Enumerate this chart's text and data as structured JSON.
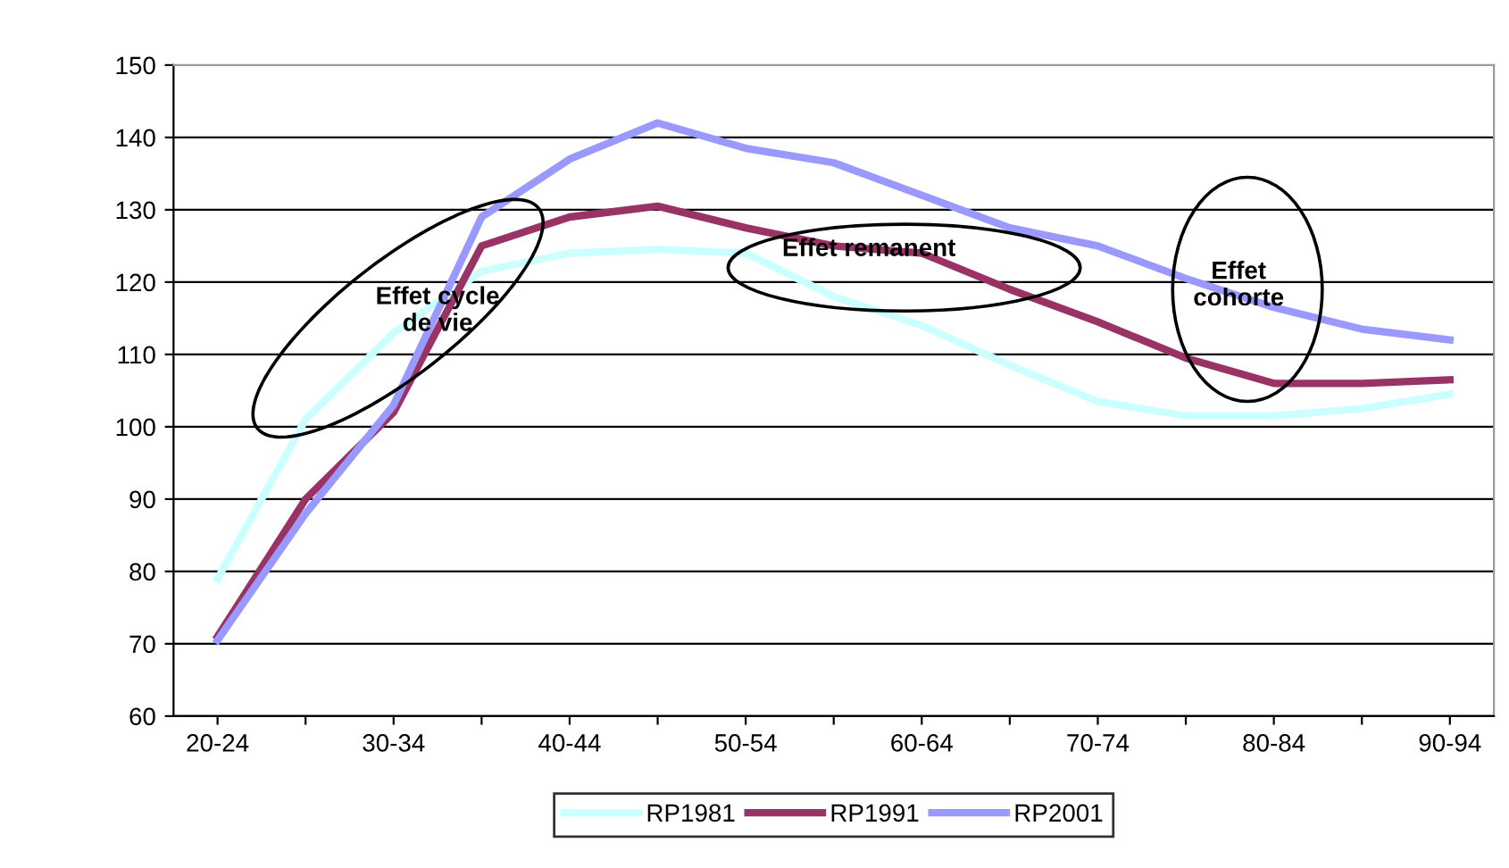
{
  "chart_data": {
    "type": "line",
    "categories": [
      "20-24",
      null,
      "30-34",
      null,
      "40-44",
      null,
      "50-54",
      null,
      "60-64",
      null,
      "70-74",
      null,
      "80-84",
      null,
      "90-94"
    ],
    "series": [
      {
        "name": "RP1981",
        "color": "#ccffff",
        "values": [
          79,
          101,
          113,
          121.5,
          124,
          124.5,
          124,
          118,
          114,
          108.5,
          103.5,
          101.5,
          101.5,
          102.5,
          104.5
        ]
      },
      {
        "name": "RP1991",
        "color": "#993366",
        "values": [
          71,
          90,
          102,
          125,
          129,
          130.5,
          127.5,
          125,
          124,
          119,
          114.5,
          109.5,
          106,
          106,
          106.5
        ]
      },
      {
        "name": "RP2001",
        "color": "#9999ff",
        "values": [
          70.5,
          88,
          103,
          129,
          137,
          142,
          138.5,
          136.5,
          132,
          127.5,
          125,
          120.5,
          116.5,
          113.5,
          112
        ]
      }
    ],
    "ylim": [
      60,
      150
    ],
    "yticks": [
      60,
      70,
      80,
      90,
      100,
      110,
      120,
      130,
      140,
      150
    ],
    "grid": "y",
    "legend": "bottom",
    "marker": "none",
    "line_style": "solid",
    "annotations": [
      "Effet cycle\nde vie",
      "Effet remanent",
      "Effet\ncohorte"
    ]
  }
}
